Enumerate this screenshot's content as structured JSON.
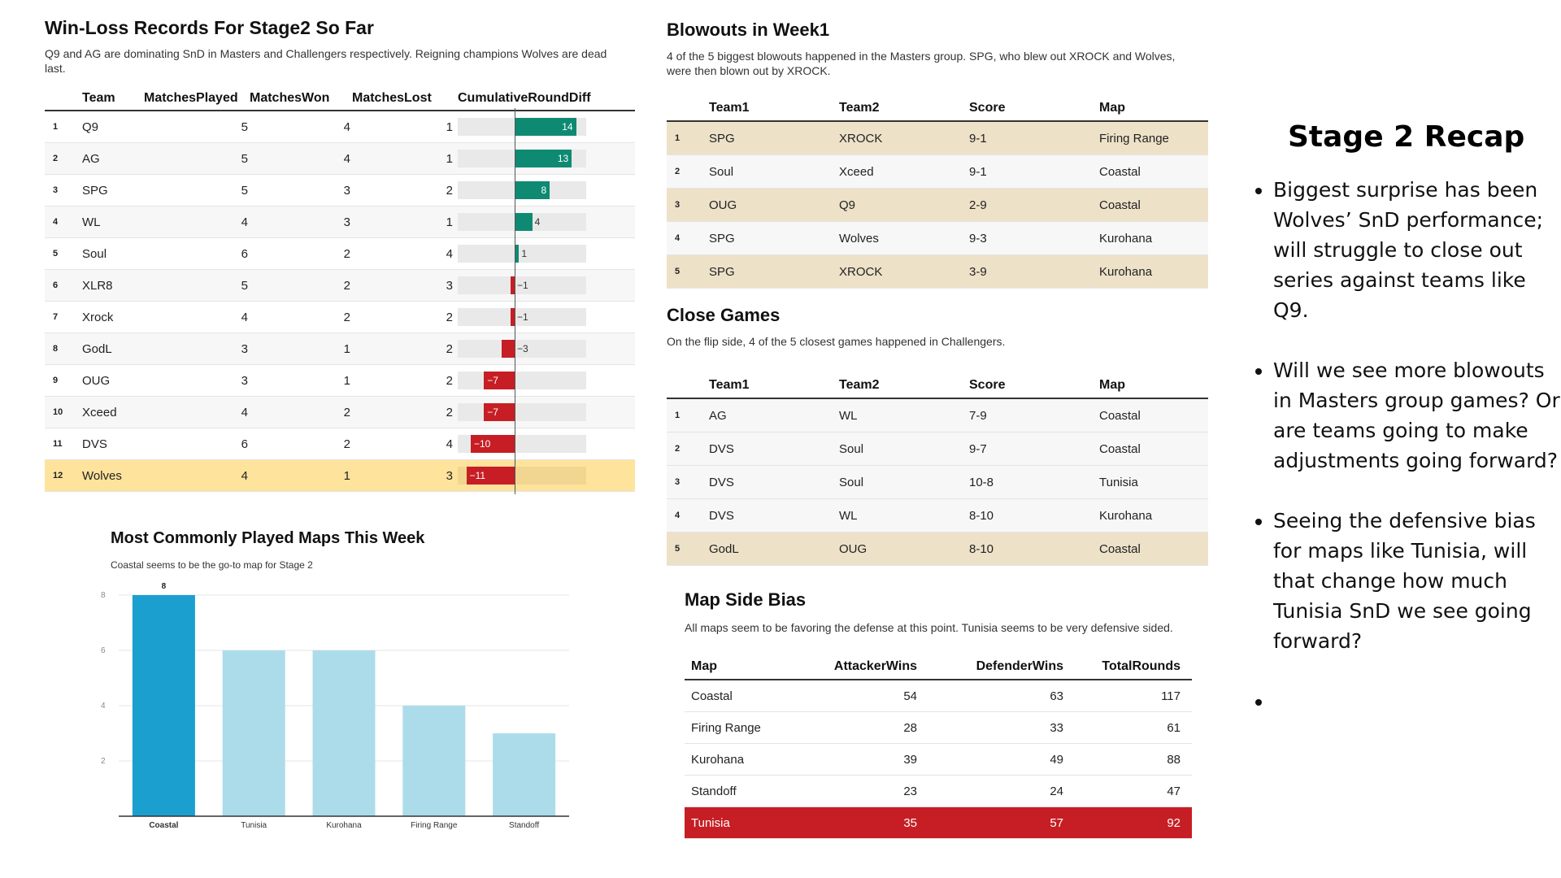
{
  "win_loss": {
    "title": "Win-Loss Records For Stage2 So Far",
    "subtitle": "Q9 and AG are dominating SnD in Masters and Challengers respectively. Reigning champions Wolves are dead last.",
    "columns": [
      "Team",
      "MatchesPlayed",
      "MatchesWon",
      "MatchesLost",
      "CumulativeRoundDiff"
    ],
    "rows": [
      {
        "rank": "1",
        "team": "Q9",
        "played": "5",
        "won": "4",
        "lost": "1",
        "diff": 14
      },
      {
        "rank": "2",
        "team": "AG",
        "played": "5",
        "won": "4",
        "lost": "1",
        "diff": 13
      },
      {
        "rank": "3",
        "team": "SPG",
        "played": "5",
        "won": "3",
        "lost": "2",
        "diff": 8
      },
      {
        "rank": "4",
        "team": "WL",
        "played": "4",
        "won": "3",
        "lost": "1",
        "diff": 4
      },
      {
        "rank": "5",
        "team": "Soul",
        "played": "6",
        "won": "2",
        "lost": "4",
        "diff": 1
      },
      {
        "rank": "6",
        "team": "XLR8",
        "played": "5",
        "won": "2",
        "lost": "3",
        "diff": -1
      },
      {
        "rank": "7",
        "team": "Xrock",
        "played": "4",
        "won": "2",
        "lost": "2",
        "diff": -1
      },
      {
        "rank": "8",
        "team": "GodL",
        "played": "3",
        "won": "1",
        "lost": "2",
        "diff": -3
      },
      {
        "rank": "9",
        "team": "OUG",
        "played": "3",
        "won": "1",
        "lost": "2",
        "diff": -7
      },
      {
        "rank": "10",
        "team": "Xceed",
        "played": "4",
        "won": "2",
        "lost": "2",
        "diff": -7
      },
      {
        "rank": "11",
        "team": "DVS",
        "played": "6",
        "won": "2",
        "lost": "4",
        "diff": -10
      },
      {
        "rank": "12",
        "team": "Wolves",
        "played": "4",
        "won": "1",
        "lost": "3",
        "diff": -11
      }
    ],
    "highlight_rank": "12",
    "colors": {
      "positive": "#0e8a72",
      "negative": "#c61e24",
      "highlight_row": "#fde39c"
    }
  },
  "maps_chart": {
    "title": "Most Commonly Played Maps This Week",
    "subtitle": "Coastal seems to be the go-to map for Stage 2"
  },
  "chart_data": {
    "type": "bar",
    "title": "Most Commonly Played Maps This Week",
    "subtitle": "Coastal seems to be the go-to map for Stage 2",
    "categories": [
      "Coastal",
      "Tunisia",
      "Kurohana",
      "Firing Range",
      "Standoff"
    ],
    "values": [
      8,
      6,
      6,
      4,
      3
    ],
    "data_labels": [
      "8",
      "",
      "",
      "",
      ""
    ],
    "highlight": "Coastal",
    "xlabel": "",
    "ylabel": "",
    "ylim": [
      0,
      8
    ],
    "yticks": [
      "2",
      "4",
      "6",
      "8"
    ],
    "grid": true,
    "colors": {
      "highlight": "#1a9fcf",
      "default": "#acdcea"
    }
  },
  "blowouts": {
    "title": "Blowouts in Week1",
    "subtitle": "4 of the 5 biggest blowouts happened in the Masters group. SPG, who blew out XROCK and Wolves, were then blown out by XROCK.",
    "columns": [
      "Team1",
      "Team2",
      "Score",
      "Map"
    ],
    "rows": [
      {
        "rank": "1",
        "team1": "SPG",
        "team2": "XROCK",
        "score": "9-1",
        "map": "Firing Range"
      },
      {
        "rank": "2",
        "team1": "Soul",
        "team2": "Xceed",
        "score": "9-1",
        "map": "Coastal"
      },
      {
        "rank": "3",
        "team1": "OUG",
        "team2": "Q9",
        "score": "2-9",
        "map": "Coastal"
      },
      {
        "rank": "4",
        "team1": "SPG",
        "team2": "Wolves",
        "score": "9-3",
        "map": "Kurohana"
      },
      {
        "rank": "5",
        "team1": "SPG",
        "team2": "XROCK",
        "score": "3-9",
        "map": "Kurohana"
      }
    ]
  },
  "close_games": {
    "title": "Close Games",
    "subtitle": "On the flip side, 4 of the 5 closest games happened in Challengers.",
    "columns": [
      "Team1",
      "Team2",
      "Score",
      "Map"
    ],
    "rows": [
      {
        "rank": "1",
        "team1": "AG",
        "team2": "WL",
        "score": "7-9",
        "map": "Coastal"
      },
      {
        "rank": "2",
        "team1": "DVS",
        "team2": "Soul",
        "score": "9-7",
        "map": "Coastal"
      },
      {
        "rank": "3",
        "team1": "DVS",
        "team2": "Soul",
        "score": "10-8",
        "map": "Tunisia"
      },
      {
        "rank": "4",
        "team1": "DVS",
        "team2": "WL",
        "score": "8-10",
        "map": "Kurohana"
      },
      {
        "rank": "5",
        "team1": "GodL",
        "team2": "OUG",
        "score": "8-10",
        "map": "Coastal"
      }
    ]
  },
  "map_side_bias": {
    "title": "Map Side Bias",
    "subtitle": "All maps seem to be favoring the defense at this point. Tunisia seems to be very defensive sided.",
    "columns": [
      "Map",
      "AttackerWins",
      "DefenderWins",
      "TotalRounds"
    ],
    "rows": [
      {
        "map": "Coastal",
        "attacker": "54",
        "defender": "63",
        "total": "117"
      },
      {
        "map": "Firing Range",
        "attacker": "28",
        "defender": "33",
        "total": "61"
      },
      {
        "map": "Kurohana",
        "attacker": "39",
        "defender": "49",
        "total": "88"
      },
      {
        "map": "Standoff",
        "attacker": "23",
        "defender": "24",
        "total": "47"
      },
      {
        "map": "Tunisia",
        "attacker": "35",
        "defender": "57",
        "total": "92"
      }
    ],
    "highlight_map": "Tunisia",
    "colors": {
      "highlight_row": "#c61e24"
    }
  },
  "recap": {
    "title": "Stage 2 Recap",
    "bullets": [
      "Biggest surprise has been Wolves’ SnD performance;  will struggle to close out series against teams like Q9.",
      "Will we see more blowouts in Masters group games? Or are teams going to make adjustments going forward?",
      "Seeing the defensive bias for maps like Tunisia, will that change how much Tunisia SnD we see going forward?",
      ""
    ]
  }
}
